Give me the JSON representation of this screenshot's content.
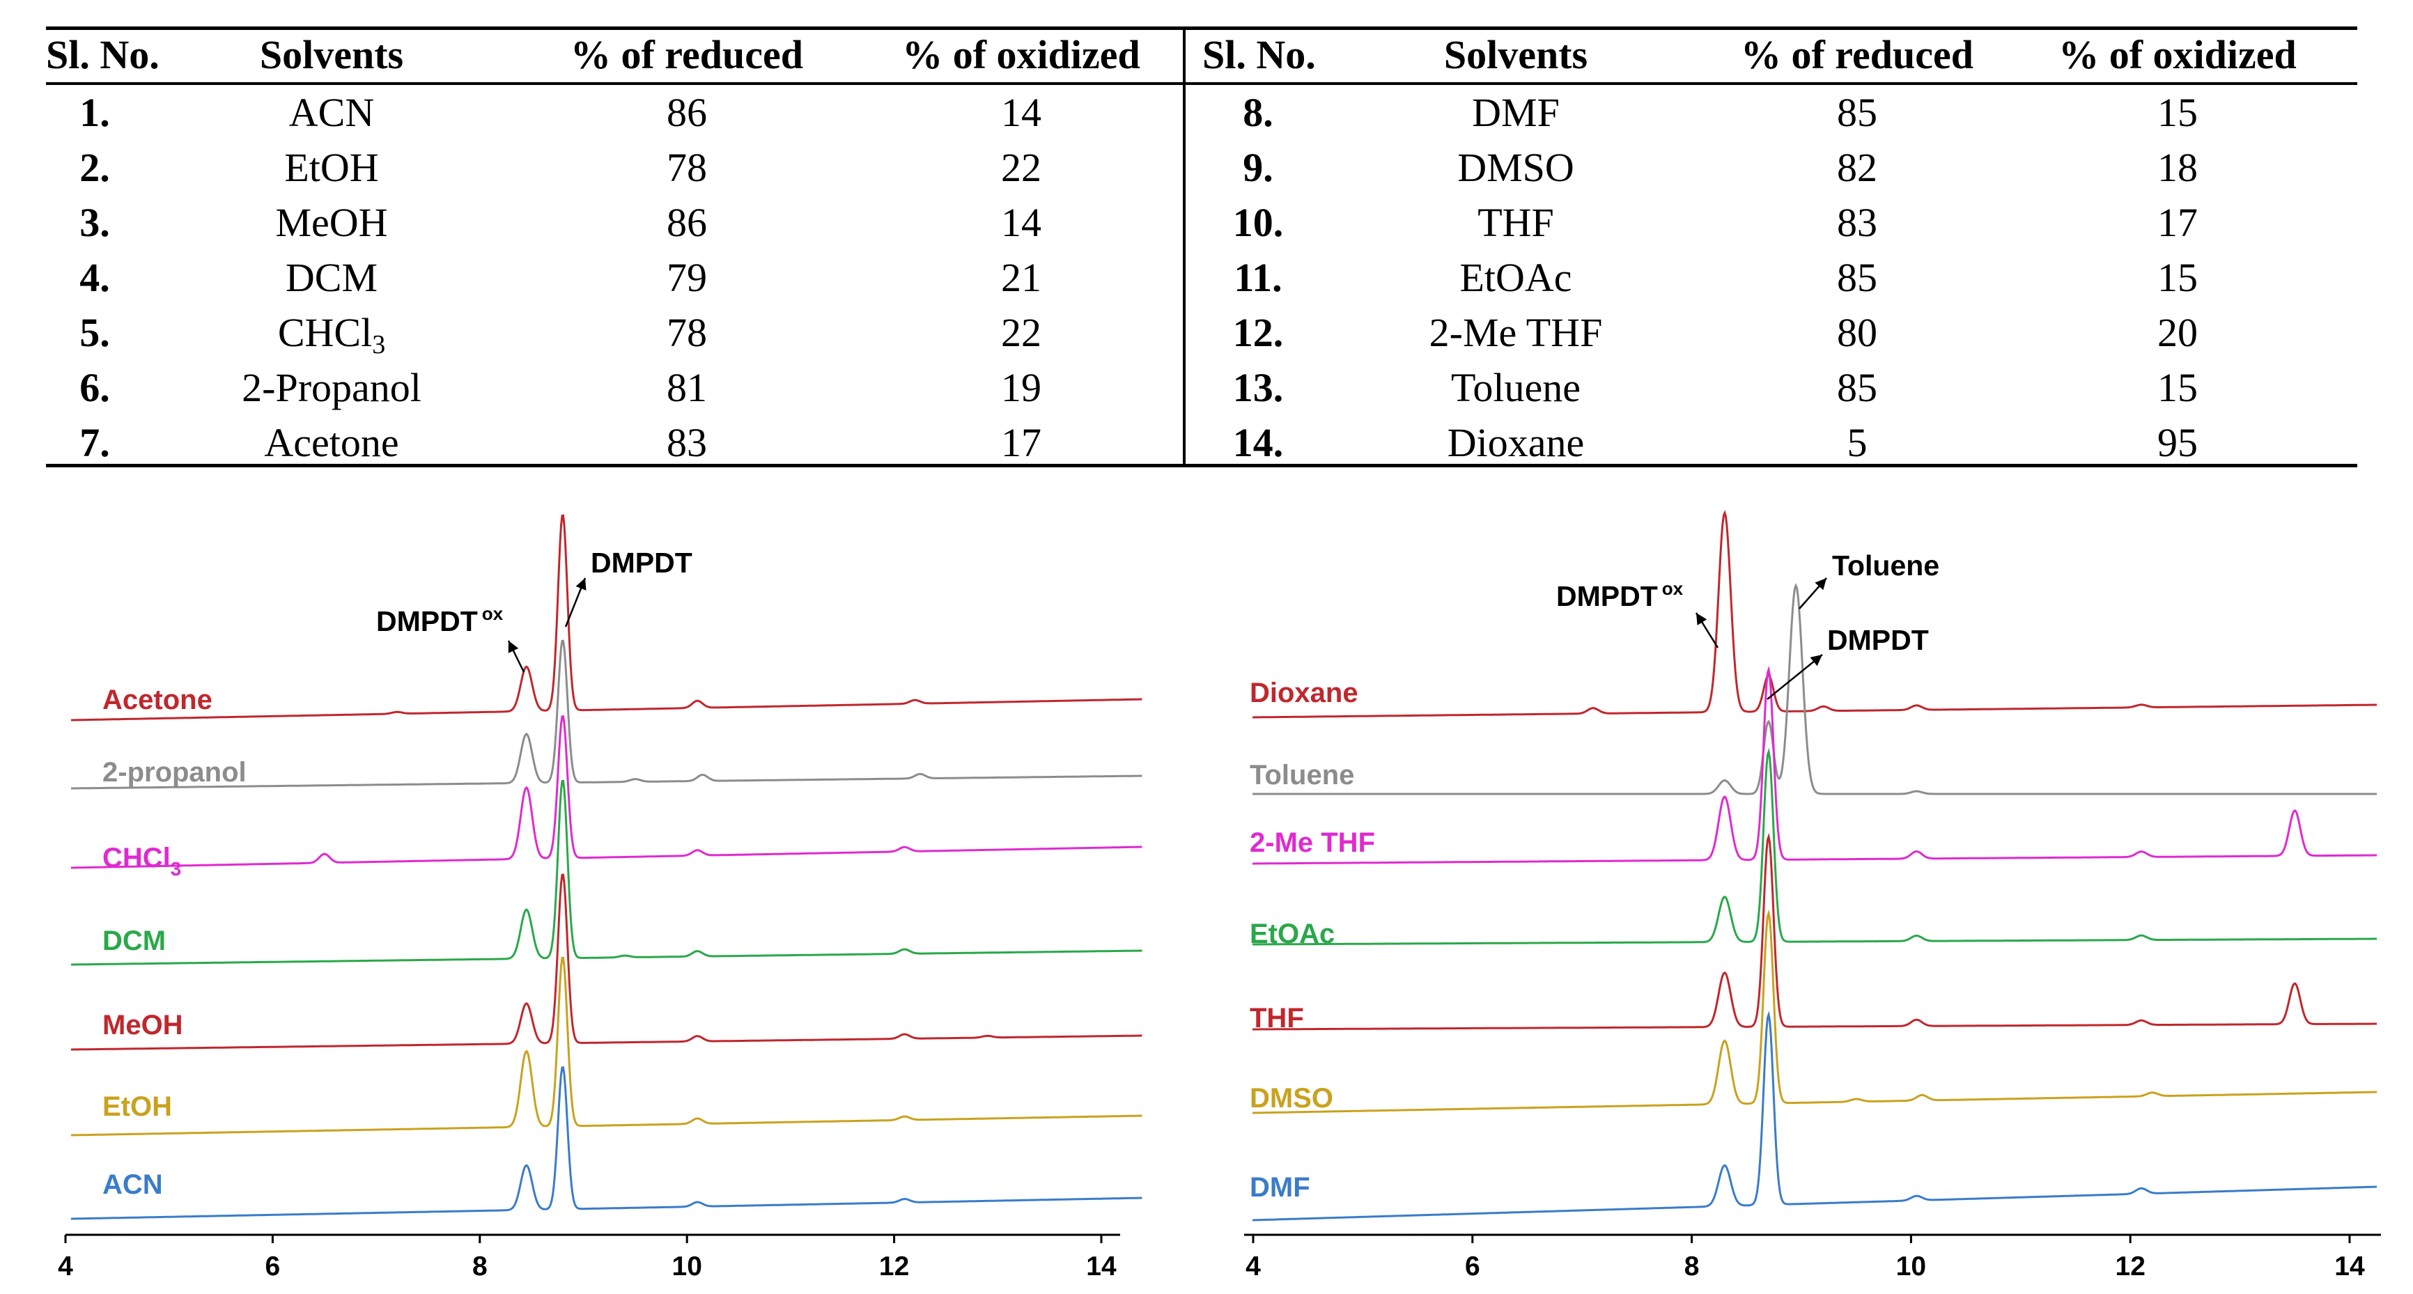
{
  "table": {
    "headers": [
      "Sl. No.",
      "Solvents",
      "% of reduced",
      "% of oxidized"
    ],
    "rows": [
      {
        "no": "1.",
        "solvent": "ACN",
        "reduced": "86",
        "oxidized": "14"
      },
      {
        "no": "2.",
        "solvent": "EtOH",
        "reduced": "78",
        "oxidized": "22"
      },
      {
        "no": "3.",
        "solvent": "MeOH",
        "reduced": "86",
        "oxidized": "14"
      },
      {
        "no": "4.",
        "solvent": "DCM",
        "reduced": "79",
        "oxidized": "21"
      },
      {
        "no": "5.",
        "solvent": "CHCl",
        "solvent_sub": "3",
        "reduced": "78",
        "oxidized": "22"
      },
      {
        "no": "6.",
        "solvent": "2-Propanol",
        "reduced": "81",
        "oxidized": "19"
      },
      {
        "no": "7.",
        "solvent": "Acetone",
        "reduced": "83",
        "oxidized": "17"
      },
      {
        "no": "8.",
        "solvent": "DMF",
        "reduced": "85",
        "oxidized": "15"
      },
      {
        "no": "9.",
        "solvent": "DMSO",
        "reduced": "82",
        "oxidized": "18"
      },
      {
        "no": "10.",
        "solvent": "THF",
        "reduced": "83",
        "oxidized": "17"
      },
      {
        "no": "11.",
        "solvent": "EtOAc",
        "reduced": "85",
        "oxidized": "15"
      },
      {
        "no": "12.",
        "solvent": "2-Me THF",
        "reduced": "80",
        "oxidized": "20"
      },
      {
        "no": "13.",
        "solvent": "Toluene",
        "reduced": "85",
        "oxidized": "15"
      },
      {
        "no": "14.",
        "solvent": "Dioxane",
        "reduced": "5",
        "oxidized": "95"
      }
    ]
  },
  "chart_data": [
    {
      "type": "line",
      "title": "",
      "xlabel": "",
      "ylabel": "",
      "x_ticks": [
        4,
        6,
        8,
        10,
        12,
        14
      ],
      "xlim": [
        4,
        14.2
      ],
      "grid": false,
      "annotations": [
        {
          "text": "DMPDT",
          "sup": "ox",
          "x": 8.45,
          "peak": "oxidized"
        },
        {
          "text": "DMPDT",
          "x": 8.8,
          "peak": "reduced"
        }
      ],
      "series": [
        {
          "name": "Acetone",
          "color": "#c0272d",
          "ox_peak": [
            8.45,
            0.5
          ],
          "red_peak": [
            8.8,
            2.2
          ],
          "minor": [
            [
              10.1,
              0.08
            ],
            [
              12.2,
              0.04
            ],
            [
              7.2,
              0.02
            ]
          ]
        },
        {
          "name": "2-propanol",
          "color": "#8c8c8c",
          "ox_peak": [
            8.45,
            0.55
          ],
          "red_peak": [
            8.8,
            1.6
          ],
          "minor": [
            [
              10.15,
              0.07
            ],
            [
              12.25,
              0.05
            ],
            [
              9.5,
              0.03
            ]
          ]
        },
        {
          "name": "CHCl",
          "name_sub": "3",
          "color": "#e02ad0",
          "ox_peak": [
            8.45,
            0.8
          ],
          "red_peak": [
            8.8,
            1.6
          ],
          "minor": [
            [
              6.5,
              0.1
            ],
            [
              10.1,
              0.06
            ],
            [
              12.1,
              0.05
            ]
          ]
        },
        {
          "name": "DCM",
          "color": "#2aa84a",
          "ox_peak": [
            8.45,
            0.55
          ],
          "red_peak": [
            8.8,
            2.0
          ],
          "minor": [
            [
              10.1,
              0.06
            ],
            [
              12.1,
              0.05
            ],
            [
              9.4,
              0.02
            ]
          ]
        },
        {
          "name": "MeOH",
          "color": "#c0272d",
          "ox_peak": [
            8.45,
            0.45
          ],
          "red_peak": [
            8.8,
            1.9
          ],
          "minor": [
            [
              10.1,
              0.06
            ],
            [
              12.1,
              0.05
            ],
            [
              12.9,
              0.02
            ]
          ]
        },
        {
          "name": "EtOH",
          "color": "#c9a21e",
          "ox_peak": [
            8.45,
            0.85
          ],
          "red_peak": [
            8.8,
            1.9
          ],
          "minor": [
            [
              10.1,
              0.06
            ],
            [
              12.1,
              0.04
            ]
          ]
        },
        {
          "name": "ACN",
          "color": "#3a7cc9",
          "ox_peak": [
            8.45,
            0.5
          ],
          "red_peak": [
            8.8,
            1.6
          ],
          "minor": [
            [
              10.1,
              0.05
            ],
            [
              12.1,
              0.04
            ]
          ]
        }
      ]
    },
    {
      "type": "line",
      "title": "",
      "xlabel": "",
      "ylabel": "",
      "x_ticks": [
        4,
        6,
        8,
        10,
        12,
        14
      ],
      "xlim": [
        4,
        14.3
      ],
      "grid": false,
      "annotations": [
        {
          "text": "DMPDT",
          "sup": "ox",
          "x": 8.3,
          "peak": "oxidized"
        },
        {
          "text": "Toluene",
          "x": 8.95,
          "peak": "solvent"
        },
        {
          "text": "DMPDT",
          "x": 8.7,
          "peak": "reduced"
        }
      ],
      "series": [
        {
          "name": "Dioxane",
          "color": "#c0272d",
          "ox_peak": [
            8.3,
            2.2
          ],
          "red_peak": [
            8.7,
            0.4
          ],
          "minor": [
            [
              7.1,
              0.06
            ],
            [
              9.2,
              0.05
            ],
            [
              10.05,
              0.05
            ],
            [
              12.1,
              0.03
            ]
          ]
        },
        {
          "name": "Toluene",
          "color": "#8c8c8c",
          "ox_peak": [
            8.3,
            0.15
          ],
          "red_peak": [
            8.7,
            0.8
          ],
          "solvent_peak": [
            8.95,
            2.3
          ],
          "minor": [
            [
              10.05,
              0.03
            ]
          ]
        },
        {
          "name": "2-Me THF",
          "color": "#e02ad0",
          "ox_peak": [
            8.3,
            0.7
          ],
          "red_peak": [
            8.7,
            2.1
          ],
          "minor": [
            [
              10.05,
              0.08
            ],
            [
              12.1,
              0.06
            ],
            [
              13.5,
              0.5
            ]
          ]
        },
        {
          "name": "EtOAc",
          "color": "#2aa84a",
          "ox_peak": [
            8.3,
            0.5
          ],
          "red_peak": [
            8.7,
            2.1
          ],
          "minor": [
            [
              10.05,
              0.06
            ],
            [
              12.1,
              0.05
            ]
          ]
        },
        {
          "name": "THF",
          "color": "#c0272d",
          "ox_peak": [
            8.3,
            0.6
          ],
          "red_peak": [
            8.7,
            2.1
          ],
          "minor": [
            [
              10.05,
              0.07
            ],
            [
              12.1,
              0.05
            ],
            [
              13.5,
              0.45
            ]
          ]
        },
        {
          "name": "DMSO",
          "color": "#c9a21e",
          "ox_peak": [
            8.3,
            0.7
          ],
          "red_peak": [
            8.7,
            2.1
          ],
          "minor": [
            [
              10.1,
              0.06
            ],
            [
              12.2,
              0.04
            ],
            [
              9.5,
              0.03
            ]
          ]
        },
        {
          "name": "DMF",
          "color": "#3a7cc9",
          "ox_peak": [
            8.3,
            0.45
          ],
          "red_peak": [
            8.7,
            2.1
          ],
          "minor": [
            [
              10.05,
              0.05
            ],
            [
              12.1,
              0.06
            ]
          ]
        }
      ]
    }
  ]
}
